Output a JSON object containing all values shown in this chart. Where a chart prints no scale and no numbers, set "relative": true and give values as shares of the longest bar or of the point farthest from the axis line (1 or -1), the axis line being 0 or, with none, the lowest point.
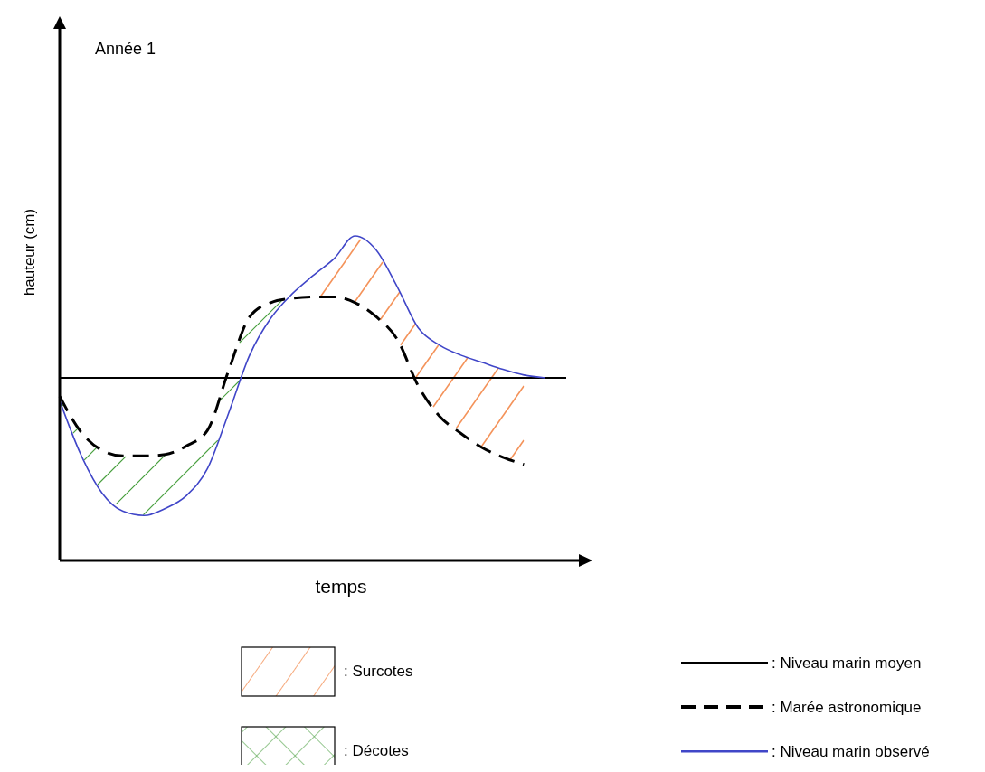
{
  "chart_data": {
    "type": "line",
    "title": "Année 1",
    "xlabel": "temps",
    "ylabel": "hauteur (cm)",
    "relative": true,
    "categories": [
      null,
      null,
      null,
      null,
      null,
      null,
      null,
      null,
      null,
      null,
      null,
      null,
      null,
      null,
      null,
      null,
      null,
      null,
      null,
      null,
      null,
      null,
      null,
      null,
      null
    ],
    "series": [
      {
        "name": ": Marée astronomique",
        "color": "#000000",
        "line_style": "dashed",
        "values": [
          -0.13,
          -0.38,
          -0.51,
          -0.55,
          -0.55,
          -0.54,
          -0.48,
          -0.37,
          0.05,
          0.43,
          0.53,
          0.56,
          0.57,
          0.57,
          0.53,
          0.43,
          0.27,
          -0.06,
          -0.27,
          -0.39,
          -0.49,
          -0.56,
          -0.61,
          null,
          null
        ]
      },
      {
        "name": ": Niveau marin observé",
        "color": "#4046c8",
        "line_style": "solid",
        "values": [
          -0.16,
          -0.54,
          -0.81,
          -0.94,
          -0.97,
          -0.92,
          -0.83,
          -0.64,
          -0.25,
          0.16,
          0.42,
          0.59,
          0.72,
          0.84,
          1,
          0.9,
          0.64,
          0.35,
          0.23,
          0.16,
          0.11,
          0.06,
          0.02,
          0,
          null
        ]
      }
    ],
    "ref_lines": [
      {
        "axis": "y",
        "value": 0,
        "label": ": Niveau marin moyen",
        "color": "#000000"
      }
    ],
    "annotations": [
      ": Surcotes",
      ": Décotes"
    ],
    "legend": "bottom"
  }
}
